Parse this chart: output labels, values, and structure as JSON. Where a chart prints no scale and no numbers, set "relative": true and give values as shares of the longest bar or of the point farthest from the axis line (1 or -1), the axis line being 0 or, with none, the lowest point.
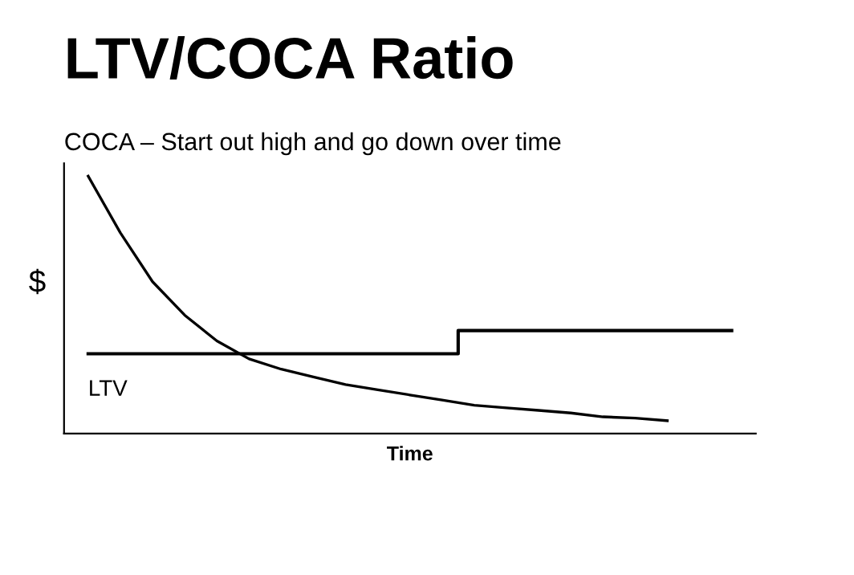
{
  "chart_data": {
    "type": "line",
    "title": "LTV/COCA Ratio",
    "xlabel": "Time",
    "ylabel": "$",
    "relative": true,
    "annotations": [
      "COCA – Start out high and go down over time"
    ],
    "categories": [
      null,
      null,
      null,
      null,
      null,
      null,
      null,
      null,
      null,
      null,
      null,
      null,
      null,
      null,
      null,
      null,
      null,
      null,
      null,
      null,
      null
    ],
    "series": [
      {
        "color": "#000000",
        "values": [
          1.0,
          0.78,
          0.59,
          0.46,
          0.36,
          0.29,
          0.25,
          0.22,
          0.19,
          0.17,
          0.15,
          0.13,
          0.11,
          0.1,
          0.09,
          0.08,
          0.065,
          0.06,
          0.05,
          null,
          null
        ]
      },
      {
        "type": "step",
        "name": "LTV",
        "color": "#000000",
        "values": [
          0.31,
          0.31,
          0.31,
          0.31,
          0.31,
          0.31,
          0.31,
          0.31,
          0.31,
          0.31,
          0.31,
          0.31,
          0.4,
          0.4,
          0.4,
          0.4,
          0.4,
          0.4,
          0.4,
          0.4,
          0.4
        ]
      }
    ],
    "grid": false,
    "legend": false
  }
}
